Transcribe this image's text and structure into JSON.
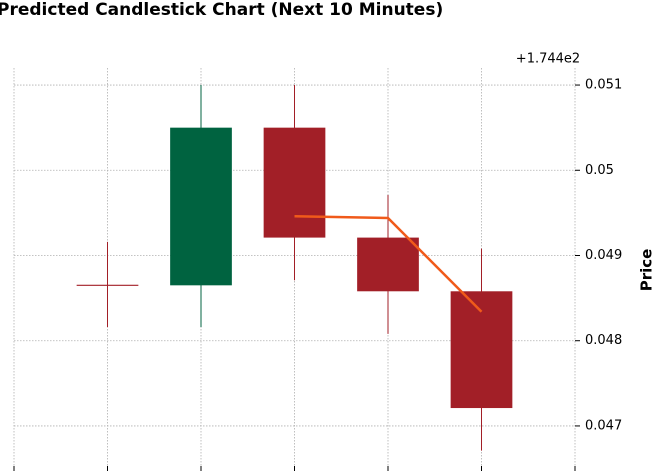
{
  "chart_data": {
    "type": "candlestick",
    "title": "Predicted Candlestick Chart (Next 10 Minutes)",
    "y_label": "Price",
    "y_offset_label": "+1.744e2",
    "x": [
      1,
      2,
      3,
      4,
      5
    ],
    "open": [
      0.04865,
      0.04865,
      0.0505,
      0.04921,
      0.04858
    ],
    "high": [
      0.04916,
      0.051,
      0.051,
      0.04971,
      0.04908
    ],
    "low": [
      0.04816,
      0.04816,
      0.04871,
      0.04808,
      0.04671
    ],
    "close": [
      0.04865,
      0.0505,
      0.04921,
      0.04858,
      0.04721
    ],
    "up_color": "#006340",
    "down_color": "#a21f27",
    "line": {
      "x": [
        3,
        4,
        5
      ],
      "values": [
        0.04946,
        0.04944,
        0.04834
      ],
      "color": "#f05a1a"
    },
    "xlim": [
      0,
      6
    ],
    "xticks": [
      0,
      1,
      2,
      3,
      4,
      5,
      6
    ],
    "ylim": [
      0.04653,
      0.0512
    ],
    "yticks": [
      0.047,
      0.048,
      0.049,
      0.05,
      0.051
    ],
    "grid": true
  }
}
